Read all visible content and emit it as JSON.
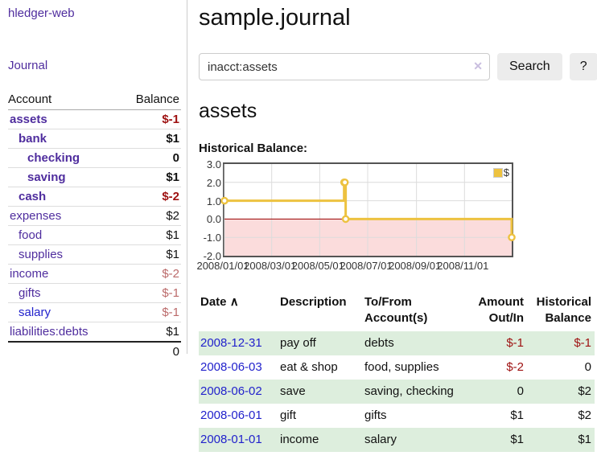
{
  "sidebar": {
    "brand": "hledger-web",
    "journal_link": "Journal",
    "table": {
      "col_account": "Account",
      "col_balance": "Balance",
      "accounts": [
        {
          "name": "assets",
          "balance": "$-1",
          "depth": 0,
          "bold": true,
          "name_color": "purple",
          "balance_color": "negative-strong"
        },
        {
          "name": "bank",
          "balance": "$1",
          "depth": 1,
          "bold": true,
          "name_color": "purple",
          "balance_color": "normal"
        },
        {
          "name": "checking",
          "balance": "0",
          "depth": 2,
          "bold": true,
          "name_color": "purple",
          "balance_color": "normal"
        },
        {
          "name": "saving",
          "balance": "$1",
          "depth": 2,
          "bold": true,
          "name_color": "purple",
          "balance_color": "normal"
        },
        {
          "name": "cash",
          "balance": "$-2",
          "depth": 1,
          "bold": true,
          "name_color": "purple",
          "balance_color": "negative-strong"
        },
        {
          "name": "expenses",
          "balance": "$2",
          "depth": 0,
          "bold": false,
          "name_color": "purple",
          "balance_color": "normal"
        },
        {
          "name": "food",
          "balance": "$1",
          "depth": 1,
          "bold": false,
          "name_color": "purple",
          "balance_color": "normal"
        },
        {
          "name": "supplies",
          "balance": "$1",
          "depth": 1,
          "bold": false,
          "name_color": "purple",
          "balance_color": "normal"
        },
        {
          "name": "income",
          "balance": "$-2",
          "depth": 0,
          "bold": false,
          "name_color": "purple",
          "balance_color": "negative-soft"
        },
        {
          "name": "gifts",
          "balance": "$-1",
          "depth": 1,
          "bold": false,
          "name_color": "purple",
          "balance_color": "negative-soft"
        },
        {
          "name": "salary",
          "balance": "$-1",
          "depth": 1,
          "bold": false,
          "name_color": "blue",
          "balance_color": "negative-soft"
        },
        {
          "name": "liabilities:debts",
          "balance": "$1",
          "depth": 0,
          "bold": false,
          "name_color": "purple",
          "balance_color": "normal"
        }
      ],
      "total": "0"
    }
  },
  "header": {
    "title": "sample.journal"
  },
  "search": {
    "query": "inacct:assets",
    "clear_icon": "✕",
    "button_label": "Search",
    "help_label": "?"
  },
  "account_page": {
    "heading": "assets",
    "chart_title": "Historical Balance:"
  },
  "chart_data": {
    "type": "line",
    "title": "Historical Balance:",
    "step": true,
    "series": [
      {
        "name": "$",
        "color": "#edc240",
        "points": [
          [
            "2008-01-01",
            1
          ],
          [
            "2008-06-01",
            2
          ],
          [
            "2008-06-02",
            2
          ],
          [
            "2008-06-03",
            0
          ],
          [
            "2008-12-31",
            -1
          ]
        ]
      }
    ],
    "x_range": [
      "2008-01-01",
      "2008-12-31"
    ],
    "ylim": [
      -2,
      3
    ],
    "y_ticks": [
      "3.0",
      "2.0",
      "1.0",
      "0.0",
      "-1.0",
      "-2.0"
    ],
    "x_ticks": [
      {
        "label": "2008/01/01",
        "date": "2008-01-01"
      },
      {
        "label": "2008/03/01",
        "date": "2008-03-01"
      },
      {
        "label": "2008/05/01",
        "date": "2008-05-01"
      },
      {
        "label": "2008/07/01",
        "date": "2008-07-01"
      },
      {
        "label": "2008/09/01",
        "date": "2008-09-01"
      },
      {
        "label": "2008/11/01",
        "date": "2008-11-01"
      }
    ],
    "grid": true,
    "grid_color": "#dcdcdc",
    "negative_region_color": "#fbdcdc",
    "zero_line_color": "#990000",
    "legend": {
      "label": "$",
      "position": "top-right"
    }
  },
  "register": {
    "columns": {
      "date": "Date",
      "sort_icon": "∧",
      "description": "Description",
      "accounts_line1": "To/From",
      "accounts_line2": "Account(s)",
      "amount_line1": "Amount",
      "amount_line2": "Out/In",
      "balance_line1": "Historical",
      "balance_line2": "Balance"
    },
    "rows": [
      {
        "date": "2008-12-31",
        "description": "pay off",
        "accounts": "debts",
        "amount": "$-1",
        "balance": "$-1",
        "amount_negative": true,
        "balance_negative": true,
        "shaded": true
      },
      {
        "date": "2008-06-03",
        "description": "eat & shop",
        "accounts": "food, supplies",
        "amount": "$-2",
        "balance": "0",
        "amount_negative": true,
        "balance_negative": false,
        "shaded": false
      },
      {
        "date": "2008-06-02",
        "description": "save",
        "accounts": "saving, checking",
        "amount": "0",
        "balance": "$2",
        "amount_negative": false,
        "balance_negative": false,
        "shaded": true
      },
      {
        "date": "2008-06-01",
        "description": "gift",
        "accounts": "gifts",
        "amount": "$1",
        "balance": "$2",
        "amount_negative": false,
        "balance_negative": false,
        "shaded": false
      },
      {
        "date": "2008-01-01",
        "description": "income",
        "accounts": "salary",
        "amount": "$1",
        "balance": "$1",
        "amount_negative": false,
        "balance_negative": false,
        "shaded": true
      }
    ]
  }
}
